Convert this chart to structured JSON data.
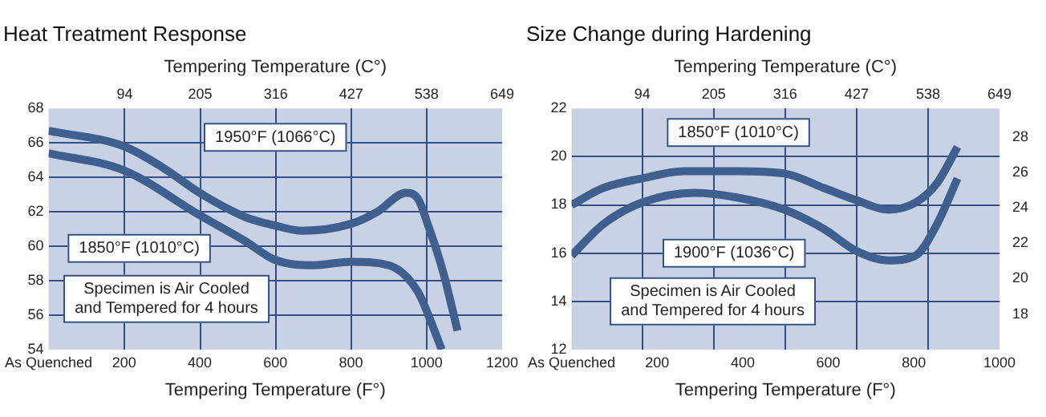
{
  "chart_data": [
    {
      "type": "line",
      "title": "Heat Treatment Response",
      "xlabel": "Tempering Temperature (F°)",
      "x2label": "Tempering Temperature (C°)",
      "xlim": [
        0,
        1200
      ],
      "xticks": [
        {
          "value": 0,
          "label": "As Quenched"
        },
        200,
        400,
        600,
        800,
        1000,
        1200
      ],
      "x2lim": [
        -18,
        649
      ],
      "x2ticks": [
        94,
        205,
        316,
        427,
        538,
        649
      ],
      "ylim": [
        54,
        68
      ],
      "yticks": [
        54,
        56,
        58,
        60,
        62,
        64,
        66,
        68
      ],
      "grid": true,
      "legend": false,
      "marker": "none",
      "line_style": "solid",
      "series": [
        {
          "color": "#3f5f8f",
          "x": [
            0,
            200,
            307,
            400,
            520,
            600,
            671,
            800,
            870,
            945,
            976,
            1006,
            1044,
            1082
          ],
          "values": [
            66.7,
            65.8,
            64.5,
            63.1,
            61.7,
            61.2,
            60.9,
            61.3,
            62.0,
            63.1,
            62.8,
            61.1,
            58.5,
            55.1
          ]
        },
        {
          "color": "#3f5f8f",
          "x": [
            0,
            200,
            400,
            520,
            600,
            701,
            800,
            900,
            976,
            1014,
            1040
          ],
          "values": [
            65.4,
            64.4,
            61.8,
            60.3,
            59.2,
            58.9,
            59.1,
            58.9,
            57.4,
            55.5,
            54.0
          ]
        }
      ],
      "annotations": [
        "1950°F (1066°C)",
        "1850°F (1010°C)",
        "Specimen is Air Cooled\nand Tempered for 4 hours"
      ]
    },
    {
      "type": "line",
      "title": "Size Change during Hardening",
      "xlabel": "Tempering Temperature (F°)",
      "x2label": "Tempering Temperature (C°)",
      "xlim": [
        0,
        1000
      ],
      "xticks": [
        {
          "value": 0,
          "label": "As Quenched"
        },
        200,
        400,
        600,
        800,
        1000
      ],
      "x2lim": [
        -16,
        649
      ],
      "x2ticks": [
        94,
        205,
        316,
        427,
        538,
        649
      ],
      "ylim": [
        12,
        22
      ],
      "yticks": [
        12,
        14,
        16,
        18,
        20,
        22
      ],
      "y2lim": [
        16,
        29.6
      ],
      "y2ticks": [
        18,
        20,
        22,
        24,
        26,
        28
      ],
      "grid": true,
      "legend": false,
      "marker": "none",
      "line_style": "solid",
      "series": [
        {
          "color": "#3f5f8f",
          "x": [
            0,
            74,
            165,
            263,
            389,
            498,
            590,
            665,
            741,
            804,
            854,
            902
          ],
          "values": [
            18.0,
            18.7,
            19.1,
            19.4,
            19.4,
            19.3,
            18.7,
            18.2,
            17.8,
            18.1,
            18.9,
            20.4
          ]
        },
        {
          "color": "#3f5f8f",
          "x": [
            0,
            74,
            165,
            288,
            389,
            498,
            590,
            665,
            741,
            804,
            854,
            902
          ],
          "values": [
            15.9,
            17.2,
            18.1,
            18.5,
            18.3,
            17.8,
            17.0,
            16.1,
            15.7,
            15.9,
            17.2,
            19.1
          ]
        }
      ],
      "annotations": [
        "1850°F (1010°C)",
        "1900°F (1036°C)",
        "Specimen is Air Cooled\nand Tempered for 4 hours"
      ]
    }
  ]
}
